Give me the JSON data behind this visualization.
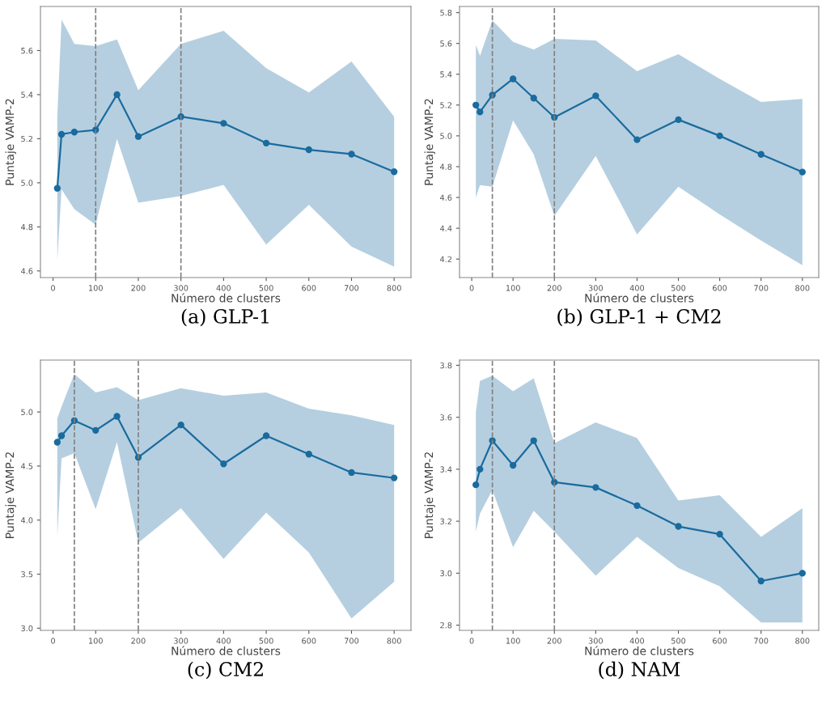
{
  "chart_data": [
    {
      "type": "line",
      "title": "(a) GLP-1",
      "xlabel": "Número de clusters",
      "ylabel": "Puntaje VAMP-2",
      "marker": "circle",
      "grid": false,
      "xlim": [
        -29.5,
        839.5
      ],
      "xticks": [
        0,
        100,
        200,
        300,
        400,
        500,
        600,
        700,
        800
      ],
      "ylim": [
        4.57,
        5.8
      ],
      "yticks": [
        4.6,
        4.8,
        {
          "value": 5,
          "label": "5.0"
        },
        5.2,
        5.4,
        5.6
      ],
      "x": [
        10,
        20,
        50,
        100,
        150,
        200,
        300,
        400,
        500,
        600,
        700,
        800
      ],
      "series": [
        {
          "color": "#1a6b9e",
          "values": [
            4.975,
            5.22,
            5.23,
            5.24,
            5.4,
            5.21,
            5.3,
            5.27,
            5.18,
            5.15,
            5.13,
            5.05
          ],
          "lower": [
            4.65,
            4.97,
            4.88,
            4.81,
            5.2,
            4.91,
            4.94,
            4.99,
            4.72,
            4.9,
            4.71,
            4.62
          ],
          "upper": [
            5.3,
            5.74,
            5.63,
            5.62,
            5.65,
            5.42,
            5.63,
            5.69,
            5.52,
            5.41,
            5.55,
            5.3
          ]
        }
      ],
      "ref_lines": [
        {
          "axis": "x",
          "value": 100,
          "color": "#808080",
          "line_style": "dashed"
        },
        {
          "axis": "x",
          "value": 300,
          "color": "#808080",
          "line_style": "dashed"
        }
      ]
    },
    {
      "type": "line",
      "title": "(b) GLP-1 + CM2",
      "xlabel": "Número de clusters",
      "ylabel": "Puntaje VAMP-2",
      "marker": "circle",
      "grid": false,
      "xlim": [
        -29.5,
        839.5
      ],
      "xticks": [
        0,
        100,
        200,
        300,
        400,
        500,
        600,
        700,
        800
      ],
      "ylim": [
        4.08,
        5.84
      ],
      "yticks": [
        4.2,
        4.4,
        4.6,
        4.8,
        {
          "value": 5,
          "label": "5.0"
        },
        5.2,
        5.4,
        5.6,
        5.8
      ],
      "x": [
        10,
        20,
        50,
        100,
        150,
        200,
        300,
        400,
        500,
        600,
        700,
        800
      ],
      "series": [
        {
          "color": "#1a6b9e",
          "values": [
            5.2,
            5.155,
            5.265,
            5.37,
            5.245,
            5.12,
            5.26,
            4.975,
            5.105,
            5.0,
            4.88,
            4.765
          ],
          "lower": [
            4.6,
            4.68,
            4.67,
            5.1,
            4.88,
            4.48,
            4.87,
            4.36,
            4.67,
            4.49,
            4.32,
            4.16
          ],
          "upper": [
            5.59,
            5.52,
            5.75,
            5.61,
            5.56,
            5.63,
            5.62,
            5.42,
            5.53,
            5.37,
            5.22,
            5.24
          ]
        }
      ],
      "ref_lines": [
        {
          "axis": "x",
          "value": 50,
          "color": "#808080",
          "line_style": "dashed"
        },
        {
          "axis": "x",
          "value": 200,
          "color": "#808080",
          "line_style": "dashed"
        }
      ]
    },
    {
      "type": "line",
      "title": "(c) CM2",
      "xlabel": "Número de clusters",
      "ylabel": "Puntaje VAMP-2",
      "marker": "circle",
      "grid": false,
      "xlim": [
        -29.5,
        839.5
      ],
      "xticks": [
        0,
        100,
        200,
        300,
        400,
        500,
        600,
        700,
        800
      ],
      "ylim": [
        2.98,
        5.48
      ],
      "yticks": [
        {
          "value": 3,
          "label": "3.0"
        },
        3.5,
        {
          "value": 4,
          "label": "4.0"
        },
        4.5,
        {
          "value": 5,
          "label": "5.0"
        }
      ],
      "x": [
        10,
        20,
        50,
        100,
        150,
        200,
        300,
        400,
        500,
        600,
        700,
        800
      ],
      "series": [
        {
          "color": "#1a6b9e",
          "values": [
            4.72,
            4.78,
            4.92,
            4.83,
            4.96,
            4.58,
            4.88,
            4.52,
            4.78,
            4.61,
            4.44,
            4.39
          ],
          "lower": [
            3.85,
            4.57,
            4.62,
            4.1,
            4.72,
            3.79,
            4.11,
            3.64,
            4.07,
            3.7,
            3.09,
            3.43
          ],
          "upper": [
            4.94,
            5.05,
            5.35,
            5.18,
            5.23,
            5.11,
            5.22,
            5.15,
            5.18,
            5.03,
            4.97,
            4.88
          ]
        }
      ],
      "ref_lines": [
        {
          "axis": "x",
          "value": 50,
          "color": "#808080",
          "line_style": "dashed"
        },
        {
          "axis": "x",
          "value": 200,
          "color": "#808080",
          "line_style": "dashed"
        }
      ]
    },
    {
      "type": "line",
      "title": "(d) NAM",
      "xlabel": "Número de clusters",
      "ylabel": "Puntaje VAMP-2",
      "marker": "circle",
      "grid": false,
      "xlim": [
        -29.5,
        839.5
      ],
      "xticks": [
        0,
        100,
        200,
        300,
        400,
        500,
        600,
        700,
        800
      ],
      "ylim": [
        2.78,
        3.82
      ],
      "yticks": [
        2.8,
        {
          "value": 3,
          "label": "3.0"
        },
        3.2,
        3.4,
        3.6,
        3.8
      ],
      "x": [
        10,
        20,
        50,
        100,
        150,
        200,
        300,
        400,
        500,
        600,
        700,
        800
      ],
      "series": [
        {
          "color": "#1a6b9e",
          "values": [
            3.34,
            3.4,
            3.51,
            3.415,
            3.51,
            3.35,
            3.33,
            3.26,
            3.18,
            3.15,
            2.97,
            3.0
          ],
          "lower": [
            3.16,
            3.23,
            3.32,
            3.1,
            3.24,
            3.16,
            2.99,
            3.14,
            3.02,
            2.95,
            2.81,
            2.81
          ],
          "upper": [
            3.62,
            3.74,
            3.76,
            3.7,
            3.75,
            3.5,
            3.58,
            3.52,
            3.28,
            3.3,
            3.14,
            3.25
          ]
        }
      ],
      "ref_lines": [
        {
          "axis": "x",
          "value": 50,
          "color": "#808080",
          "line_style": "dashed"
        },
        {
          "axis": "x",
          "value": 200,
          "color": "#808080",
          "line_style": "dashed"
        }
      ]
    }
  ]
}
